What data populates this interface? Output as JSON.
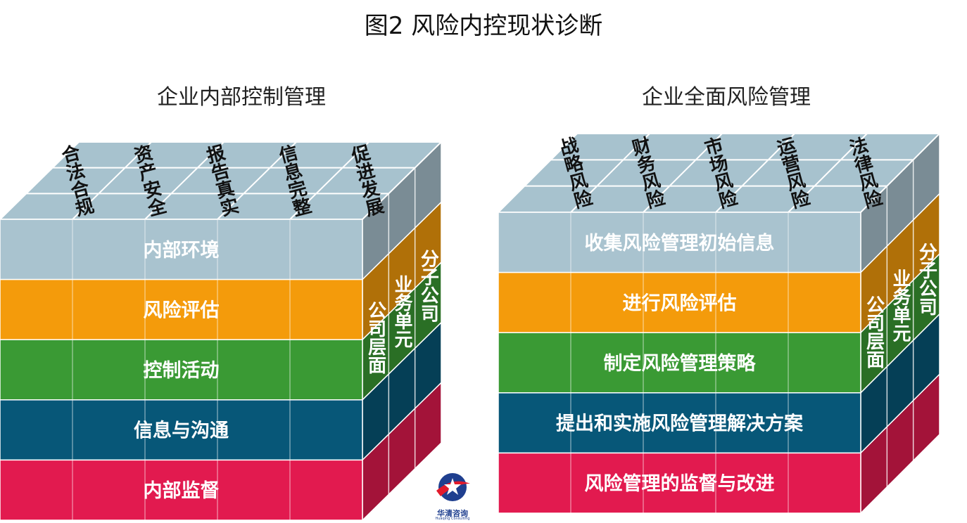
{
  "title": "图2  风险内控现状诊断",
  "colors": {
    "top": "#a7c2ce",
    "layers": [
      "#a9c3cf",
      "#f49b0b",
      "#3a9a34",
      "#075778",
      "#e21a4f"
    ],
    "line": "#ffffff"
  },
  "left_cube": {
    "heading": "企业内部控制管理",
    "top_labels": [
      "合法合规",
      "资产安全",
      "报告真实",
      "信息完整",
      "促进发展"
    ],
    "layers": [
      "内部环境",
      "风险评估",
      "控制活动",
      "信息与沟通",
      "内部监督"
    ],
    "side_labels": [
      "公司层面",
      "业务单元",
      "分子公司"
    ]
  },
  "right_cube": {
    "heading": "企业全面风险管理",
    "top_labels": [
      "战略风险",
      "财务风险",
      "市场风险",
      "运营风险",
      "法律风险"
    ],
    "layers": [
      "收集风险管理初始信息",
      "进行风险评估",
      "制定风险管理策略",
      "提出和实施风险管理解决方案",
      "风险管理的监督与改进"
    ],
    "side_labels": [
      "公司层面",
      "业务单元",
      "分子公司"
    ]
  },
  "logo": {
    "name": "华清咨询",
    "sub": "Huaqing Consulting"
  }
}
